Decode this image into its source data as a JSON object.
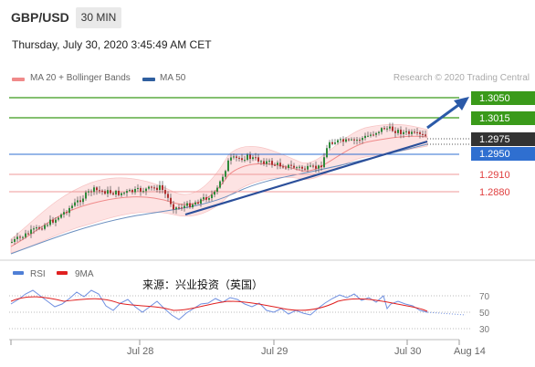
{
  "header": {
    "symbol": "GBP/USD",
    "timeframe": "30 MIN"
  },
  "datetime": "Thursday, July 30, 2020 3:45:49 AM CET",
  "legend": [
    {
      "label": "MA 20 + Bollinger Bands",
      "color": "#f08a8a"
    },
    {
      "label": "MA 50",
      "color": "#2f5f9f"
    }
  ],
  "credit": "Research © 2020 Trading Central",
  "watermark": "来源：兴业投资（英国）",
  "chart_data": {
    "type": "candlestick",
    "price_levels": [
      {
        "value": "1.3050",
        "kind": "resistance",
        "color": "#3a9a1a"
      },
      {
        "value": "1.3015",
        "kind": "resistance",
        "color": "#3a9a1a"
      },
      {
        "value": "1.2975",
        "kind": "last-price",
        "color": "#333333"
      },
      {
        "value": "1.2950",
        "kind": "pivot",
        "color": "#2f6fd0"
      },
      {
        "value": "1.2910",
        "kind": "support",
        "color": "#e05050"
      },
      {
        "value": "1.2880",
        "kind": "support",
        "color": "#e05050"
      }
    ],
    "x_ticks": [
      "Jul 28",
      "Jul 29",
      "Jul 30",
      "Aug 14"
    ],
    "rsi": {
      "legend": [
        "RSI",
        "9MA"
      ],
      "levels": [
        "70",
        "50",
        "30"
      ]
    }
  }
}
